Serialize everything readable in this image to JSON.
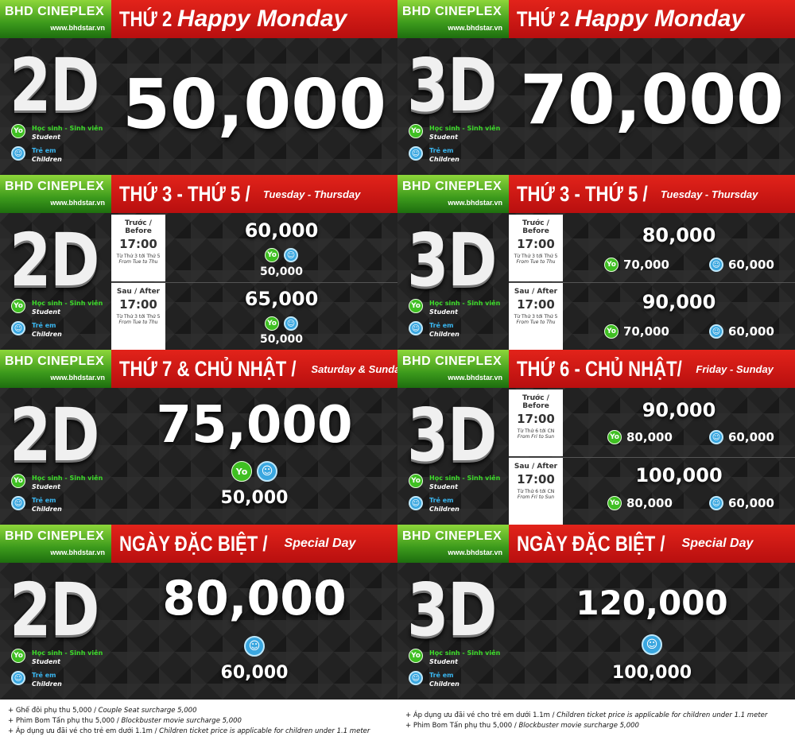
{
  "brand": {
    "logo": "BHD CINEPLEX",
    "site": "www.bhdstar.vn"
  },
  "legend": {
    "student_vi": "Học sinh - Sinh viên",
    "student_en": "Student",
    "child_vi": "Trẻ em",
    "child_en": "Children",
    "yo_label": "Yo"
  },
  "left": {
    "p1": {
      "title_vi": "THỨ 2",
      "title_en": "Happy Monday",
      "dim": "2D",
      "price": "50,000"
    },
    "p2": {
      "title_vi": "THỨ 3 - THỨ 5 /",
      "title_en": "Tuesday - Thursday",
      "dim": "2D",
      "before_label": "Trước / Before",
      "before_time": "17:00",
      "before_range_vi": "Từ Thứ 3 tới Thứ 5",
      "before_range_en": "From Tue to Thu",
      "before_price": "60,000",
      "before_discount": "50,000",
      "after_label": "Sau / After",
      "after_time": "17:00",
      "after_range_vi": "Từ Thứ 3 tới Thứ 5",
      "after_range_en": "From Tue to Thu",
      "after_price": "65,000",
      "after_discount": "50,000"
    },
    "p3": {
      "title_vi": "THỨ 7 & CHỦ NHẬT /",
      "title_en": "Saturday & Sunday",
      "dim": "2D",
      "price": "75,000",
      "discount": "50,000"
    },
    "p4": {
      "title_vi": "NGÀY ĐẶC BIỆT /",
      "title_en": "Special Day",
      "dim": "2D",
      "price": "80,000",
      "discount": "60,000"
    },
    "footer": [
      {
        "vi": "+ Ghế đôi phụ thu 5,000 / ",
        "en": "Couple Seat surcharge 5,000"
      },
      {
        "vi": "+ Phim Bom Tấn phụ thu 5,000 / ",
        "en": "Blockbuster movie surcharge 5,000"
      },
      {
        "vi": "+ Áp dụng ưu đãi vé cho trẻ em dưới 1.1m / ",
        "en": "Children ticket price is applicable for children under 1.1 meter"
      }
    ]
  },
  "right": {
    "p1": {
      "title_vi": "THỨ 2",
      "title_en": "Happy Monday",
      "dim": "3D",
      "price": "70,000"
    },
    "p2": {
      "title_vi": "THỨ 3 - THỨ 5 /",
      "title_en": "Tuesday - Thursday",
      "dim": "3D",
      "before_label": "Trước / Before",
      "before_time": "17:00",
      "before_range_vi": "Từ Thứ 3 tới Thứ 5",
      "before_range_en": "From Tue to Thu",
      "before_price": "80,000",
      "before_student": "70,000",
      "before_child": "60,000",
      "after_label": "Sau / After",
      "after_time": "17:00",
      "after_range_vi": "Từ Thứ 3 tới Thứ 5",
      "after_range_en": "From Tue to Thu",
      "after_price": "90,000",
      "after_student": "70,000",
      "after_child": "60,000"
    },
    "p3": {
      "title_vi": "THỨ 6 - CHỦ NHẬT/",
      "title_en": "Friday - Sunday",
      "dim": "3D",
      "before_label": "Trước / Before",
      "before_time": "17:00",
      "before_range_vi": "Từ Thứ 6 tới CN",
      "before_range_en": "From Fri to Sun",
      "before_price": "90,000",
      "before_student": "80,000",
      "before_child": "60,000",
      "after_label": "Sau / After",
      "after_time": "17:00",
      "after_range_vi": "Từ Thứ 6 tới CN",
      "after_range_en": "From Fri to Sun",
      "after_price": "100,000",
      "after_student": "80,000",
      "after_child": "60,000"
    },
    "p4": {
      "title_vi": "NGÀY ĐẶC BIỆT /",
      "title_en": "Special Day",
      "dim": "3D",
      "price": "120,000",
      "discount": "100,000"
    },
    "footer": [
      {
        "vi": "+ Áp dụng ưu đãi vé cho trẻ em dưới 1.1m / ",
        "en": "Children ticket price is applicable for children under 1.1 meter"
      },
      {
        "vi": "+ Phim Bom Tấn phụ thu 5,000 / ",
        "en": "Blockbuster movie surcharge 5,000"
      }
    ]
  },
  "colors": {
    "brand_green": "#3c9a1c",
    "header_red": "#d41c15",
    "student_green": "#3fbf22",
    "child_blue": "#3aa7e0"
  }
}
